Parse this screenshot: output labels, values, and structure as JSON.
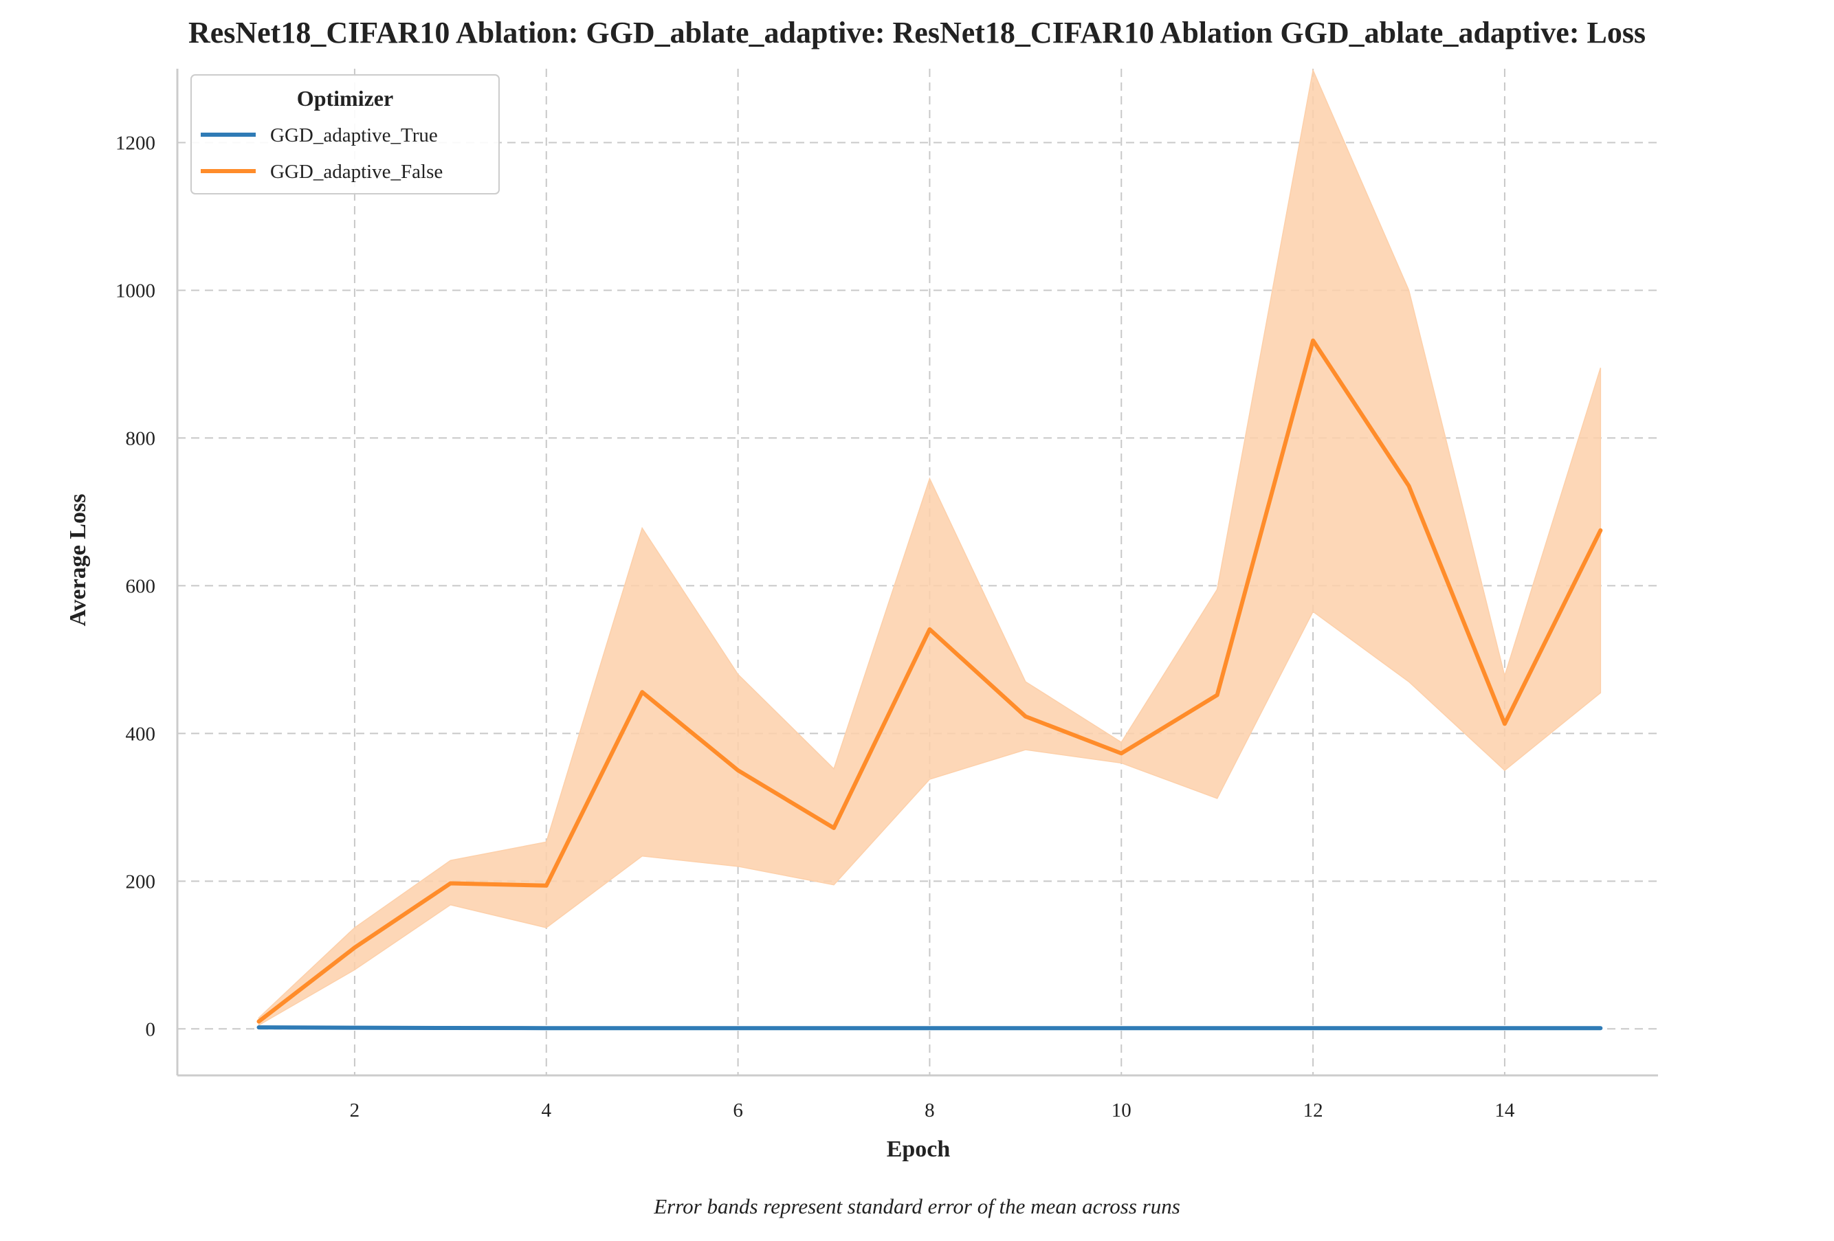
{
  "chart_data": {
    "type": "line",
    "title": "ResNet18_CIFAR10 Ablation: GGD_ablate_adaptive: ResNet18_CIFAR10 Ablation GGD_ablate_adaptive: Loss",
    "xlabel": "Epoch",
    "ylabel": "Average Loss",
    "caption": "Error bands represent standard error of the mean across runs",
    "xlim": [
      0.15,
      15.6
    ],
    "ylim": [
      -63,
      1300
    ],
    "xticks": [
      2,
      4,
      6,
      8,
      10,
      12,
      14
    ],
    "yticks": [
      0,
      200,
      400,
      600,
      800,
      1000,
      1200
    ],
    "grid": true,
    "legend": {
      "title": "Optimizer",
      "placement": "top-left"
    },
    "x": [
      1,
      2,
      3,
      4,
      5,
      6,
      7,
      8,
      9,
      10,
      11,
      12,
      13,
      14,
      15
    ],
    "series": [
      {
        "name": "GGD_adaptive_True",
        "color": "#2f7bb6",
        "values": [
          2,
          1.5,
          1.2,
          1,
          1,
          1,
          1,
          1,
          1,
          1,
          1,
          1,
          1,
          1,
          1
        ],
        "lower": [
          2,
          1.5,
          1.2,
          1,
          1,
          1,
          1,
          1,
          1,
          1,
          1,
          1,
          1,
          1,
          1
        ],
        "upper": [
          2,
          1.5,
          1.2,
          1,
          1,
          1,
          1,
          1,
          1,
          1,
          1,
          1,
          1,
          1,
          1
        ]
      },
      {
        "name": "GGD_adaptive_False",
        "color": "#ff8c2a",
        "band_color": "#fdd0aa",
        "values": [
          10,
          110,
          197,
          194,
          456,
          350,
          272,
          541,
          423,
          373,
          452,
          932,
          735,
          413,
          675
        ],
        "lower": [
          5,
          80,
          168,
          137,
          234,
          220,
          195,
          338,
          378,
          360,
          312,
          565,
          470,
          350,
          455
        ],
        "upper": [
          15,
          137,
          228,
          253,
          678,
          480,
          352,
          745,
          470,
          388,
          595,
          1298,
          1000,
          478,
          895
        ]
      }
    ]
  }
}
